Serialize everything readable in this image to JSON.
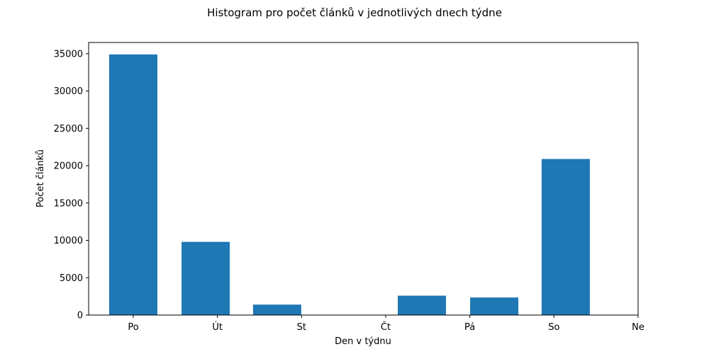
{
  "chart_data": {
    "type": "bar",
    "title": "Histogram pro počet článků v jednotlivých dnech týdne",
    "xlabel": "Den v týdnu",
    "ylabel": "Počet článků",
    "ylim": [
      0,
      36500
    ],
    "yticks": [
      0,
      5000,
      10000,
      15000,
      20000,
      25000,
      30000,
      35000
    ],
    "xticks": [
      "Po",
      "Út",
      "St",
      "Čt",
      "Pá",
      "So",
      "Ne"
    ],
    "bars": [
      {
        "x": 0.0,
        "value": 34900
      },
      {
        "x": 0.86,
        "value": 9800
      },
      {
        "x": 1.71,
        "value": 1400
      },
      {
        "x": 2.57,
        "value": 0
      },
      {
        "x": 3.43,
        "value": 2600
      },
      {
        "x": 4.29,
        "value": 2350
      },
      {
        "x": 5.14,
        "value": 20900
      },
      {
        "x": 6.0,
        "value": 0
      }
    ],
    "xlim": [
      -0.5,
      6.0
    ],
    "bar_color": "#1f77b4",
    "grid": false,
    "legend": "none"
  }
}
